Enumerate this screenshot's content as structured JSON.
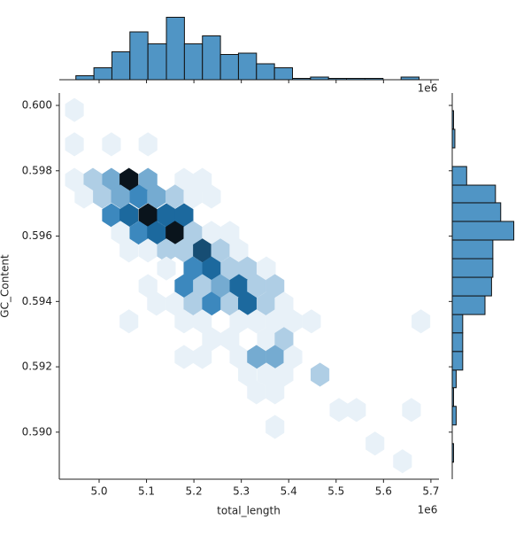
{
  "chart_data": {
    "type": "hexbin",
    "xlabel": "total_length",
    "ylabel": "GC_Content",
    "x_offset": "1e6",
    "color": "#1f77b4",
    "xlim": [
      4.916,
      5.717
    ],
    "ylim": [
      0.58856,
      0.60038
    ],
    "xticks": [
      {
        "value": 5,
        "label": "5.0"
      },
      5.1,
      5.2,
      5.3,
      5.4,
      5.5,
      5.6,
      5.7
    ],
    "yticks": [
      {
        "value": 0.59,
        "label": "0.590"
      },
      0.592,
      0.594,
      0.596,
      0.598,
      {
        "value": 0.6,
        "label": "0.600"
      }
    ],
    "x": [
      4.948,
      4.948,
      5.026,
      5.103,
      4.948,
      4.987,
      5.026,
      5.063,
      5.103,
      5.179,
      5.218,
      4.968,
      5.007,
      5.045,
      5.084,
      5.121,
      5.16,
      5.198,
      5.237,
      5.026,
      5.063,
      5.103,
      5.142,
      5.179,
      5.045,
      5.084,
      5.121,
      5.16,
      5.198,
      5.237,
      5.276,
      5.063,
      5.103,
      5.142,
      5.179,
      5.218,
      5.256,
      5.295,
      5.142,
      5.198,
      5.237,
      5.276,
      5.313,
      5.353,
      5.103,
      5.179,
      5.218,
      5.256,
      5.295,
      5.332,
      5.371,
      5.121,
      5.16,
      5.198,
      5.237,
      5.276,
      5.313,
      5.353,
      5.39,
      5.063,
      5.179,
      5.218,
      5.295,
      5.332,
      5.371,
      5.409,
      5.448,
      5.679,
      5.237,
      5.276,
      5.353,
      5.39,
      5.179,
      5.218,
      5.295,
      5.332,
      5.371,
      5.409,
      5.313,
      5.353,
      5.39,
      5.466,
      5.332,
      5.371,
      5.506,
      5.543,
      5.659,
      5.371,
      5.582,
      5.64
    ],
    "y": [
      0.59986,
      0.59881,
      0.59881,
      0.59881,
      0.59772,
      0.59772,
      0.59772,
      0.59772,
      0.59772,
      0.59772,
      0.59772,
      0.59721,
      0.59721,
      0.59721,
      0.59721,
      0.59721,
      0.59721,
      0.59721,
      0.59721,
      0.59664,
      0.59664,
      0.59664,
      0.59664,
      0.59664,
      0.5961,
      0.5961,
      0.5961,
      0.5961,
      0.5961,
      0.5961,
      0.5961,
      0.59556,
      0.59556,
      0.59556,
      0.59556,
      0.59556,
      0.59556,
      0.59556,
      0.59501,
      0.59501,
      0.59501,
      0.59501,
      0.59501,
      0.59501,
      0.59447,
      0.59447,
      0.59447,
      0.59447,
      0.59447,
      0.59447,
      0.59447,
      0.59393,
      0.59393,
      0.59393,
      0.59393,
      0.59393,
      0.59393,
      0.59393,
      0.59393,
      0.59339,
      0.59339,
      0.59339,
      0.59339,
      0.59339,
      0.59339,
      0.59339,
      0.59339,
      0.59339,
      0.59285,
      0.59285,
      0.59285,
      0.59285,
      0.5923,
      0.5923,
      0.5923,
      0.5923,
      0.5923,
      0.5923,
      0.59176,
      0.59176,
      0.59176,
      0.59176,
      0.59122,
      0.59122,
      0.59068,
      0.59068,
      0.59068,
      0.59016,
      0.58965,
      0.58911
    ],
    "counts": [
      1,
      1,
      1,
      1,
      1,
      2,
      3,
      8,
      3,
      1,
      1,
      1,
      2,
      3,
      4,
      3,
      2,
      1,
      1,
      4,
      5,
      8,
      5,
      5,
      1,
      4,
      5,
      8,
      2,
      1,
      1,
      1,
      1,
      2,
      2,
      6,
      2,
      1,
      1,
      4,
      5,
      2,
      2,
      1,
      1,
      4,
      2,
      3,
      5,
      2,
      2,
      1,
      1,
      2,
      4,
      2,
      5,
      2,
      1,
      1,
      1,
      1,
      1,
      1,
      1,
      1,
      1,
      1,
      1,
      1,
      1,
      2,
      1,
      1,
      1,
      3,
      3,
      1,
      1,
      1,
      1,
      2,
      1,
      1,
      1,
      1,
      1,
      1,
      1,
      1
    ],
    "x_marginal": {
      "ylim": [
        0,
        50
      ],
      "bins": [
        4.951,
        4.989,
        5.027,
        5.065,
        5.103,
        5.142,
        5.18,
        5.218,
        5.256,
        5.294,
        5.332,
        5.37,
        5.408,
        5.446,
        5.484,
        5.522,
        5.561,
        5.599,
        5.637,
        5.675
      ],
      "counts": [
        3,
        9,
        21,
        36,
        27,
        47,
        27,
        33,
        19,
        20,
        12,
        9,
        1,
        2,
        1,
        1,
        1,
        0,
        2
      ]
    },
    "y_marginal": {
      "xlim": [
        0,
        50
      ],
      "bins": [
        0.58908,
        0.58965,
        0.59022,
        0.59079,
        0.59136,
        0.5919,
        0.59247,
        0.59304,
        0.5936,
        0.59417,
        0.59474,
        0.59531,
        0.59588,
        0.59645,
        0.59702,
        0.59756,
        0.59813,
        0.5987,
        0.59927,
        0.59984
      ],
      "counts": [
        1,
        0,
        3,
        1,
        3,
        8,
        8,
        8,
        25,
        30,
        31,
        31,
        47,
        37,
        33,
        11,
        0,
        2,
        1
      ]
    }
  }
}
